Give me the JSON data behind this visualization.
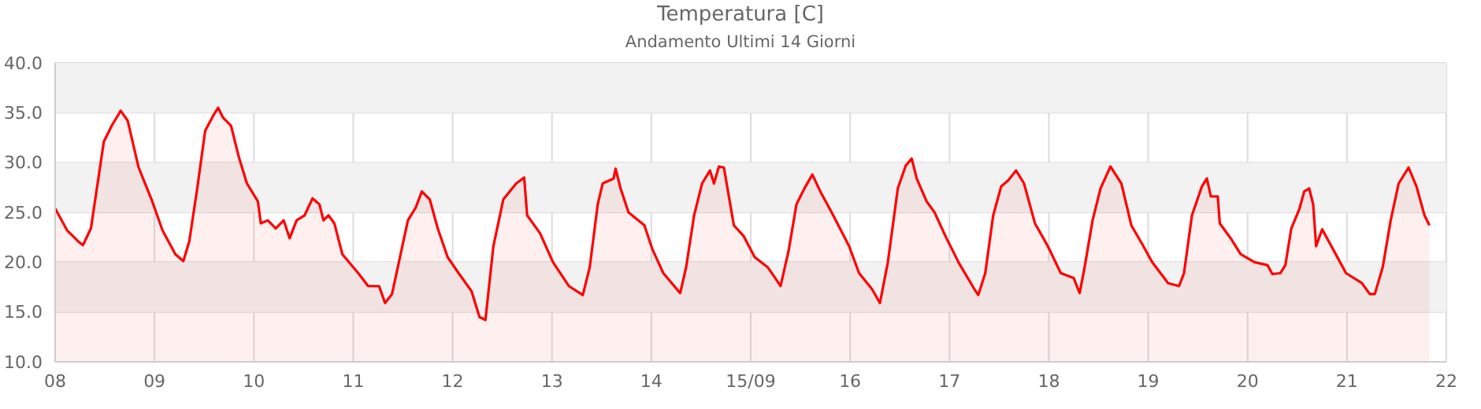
{
  "chart_data": {
    "type": "area",
    "title": "Temperatura [C]",
    "subtitle": "Andamento Ultimi 14 Giorni",
    "xlim": [
      8,
      22
    ],
    "xticks": [
      {
        "value": 8,
        "label": "08"
      },
      {
        "value": 9,
        "label": "09"
      },
      10,
      11,
      12,
      13,
      14,
      {
        "value": 15,
        "label": "15/09"
      },
      16,
      17,
      18,
      19,
      20,
      21,
      22
    ],
    "ylim": [
      10,
      40
    ],
    "yticks": [
      {
        "value": 10,
        "label": "10.0"
      },
      {
        "value": 15,
        "label": "15.0"
      },
      {
        "value": 20,
        "label": "20.0"
      },
      {
        "value": 25,
        "label": "25.0"
      },
      {
        "value": 30,
        "label": "30.0"
      },
      {
        "value": 35,
        "label": "35.0"
      },
      {
        "value": 40,
        "label": "40.0"
      }
    ],
    "grid": true,
    "legend": false,
    "marker": "none",
    "line_style": "solid",
    "bands": [
      {
        "axis": "y",
        "from": 15,
        "to": 20,
        "color": "#f2f2f2"
      },
      {
        "axis": "y",
        "from": 25,
        "to": 30,
        "color": "#f2f2f2"
      },
      {
        "axis": "y",
        "from": 35,
        "to": 40,
        "color": "#f2f2f2"
      }
    ],
    "x": [
      8.0,
      8.12,
      8.23,
      8.28,
      8.36,
      8.42,
      8.49,
      8.57,
      8.66,
      8.73,
      8.84,
      8.97,
      9.08,
      9.21,
      9.29,
      9.35,
      9.43,
      9.51,
      9.59,
      9.64,
      9.69,
      9.77,
      9.85,
      9.93,
      10.04,
      10.07,
      10.14,
      10.22,
      10.3,
      10.36,
      10.43,
      10.51,
      10.59,
      10.66,
      10.7,
      10.75,
      10.81,
      10.89,
      11.05,
      11.15,
      11.26,
      11.32,
      11.39,
      11.47,
      11.55,
      11.63,
      11.69,
      11.77,
      11.85,
      11.95,
      12.06,
      12.19,
      12.27,
      12.33,
      12.41,
      12.51,
      12.64,
      12.72,
      12.75,
      12.88,
      13.01,
      13.17,
      13.31,
      13.38,
      13.46,
      13.51,
      13.62,
      13.64,
      13.69,
      13.77,
      13.93,
      14.01,
      14.12,
      14.29,
      14.35,
      14.43,
      14.51,
      14.59,
      14.63,
      14.68,
      14.73,
      14.83,
      14.93,
      15.04,
      15.17,
      15.24,
      15.3,
      15.38,
      15.46,
      15.54,
      15.62,
      15.7,
      15.83,
      15.99,
      16.09,
      16.22,
      16.3,
      16.38,
      16.48,
      16.56,
      16.62,
      16.67,
      16.77,
      16.85,
      16.96,
      17.09,
      17.25,
      17.29,
      17.36,
      17.44,
      17.52,
      17.59,
      17.67,
      17.75,
      17.86,
      17.99,
      18.12,
      18.25,
      18.31,
      18.36,
      18.44,
      18.52,
      18.62,
      18.73,
      18.83,
      18.94,
      19.04,
      19.2,
      19.31,
      19.36,
      19.44,
      19.54,
      19.59,
      19.63,
      19.7,
      19.72,
      19.83,
      19.93,
      20.07,
      20.2,
      20.25,
      20.33,
      20.38,
      20.44,
      20.52,
      20.57,
      20.62,
      20.66,
      20.69,
      20.75,
      20.86,
      20.99,
      21.15,
      21.23,
      21.28,
      21.36,
      21.44,
      21.52,
      21.62,
      21.7,
      21.78,
      21.83
    ],
    "series": [
      {
        "color": "#ff0000",
        "values": [
          25.4,
          23.2,
          22.1,
          21.7,
          23.4,
          27.4,
          32.1,
          33.7,
          35.2,
          34.2,
          29.5,
          26.3,
          23.2,
          20.8,
          20.1,
          22.1,
          27.4,
          33.2,
          34.7,
          35.5,
          34.5,
          33.7,
          30.5,
          27.9,
          26.1,
          23.9,
          24.2,
          23.4,
          24.2,
          22.4,
          24.2,
          24.7,
          26.4,
          25.8,
          24.2,
          24.7,
          23.9,
          20.8,
          18.9,
          17.6,
          17.6,
          15.9,
          16.8,
          20.5,
          24.2,
          25.5,
          27.1,
          26.3,
          23.4,
          20.5,
          18.9,
          17.1,
          14.5,
          14.2,
          21.6,
          26.3,
          27.9,
          28.5,
          24.7,
          22.9,
          20.0,
          17.6,
          16.7,
          19.5,
          25.8,
          27.9,
          28.4,
          29.4,
          27.4,
          25.0,
          23.7,
          21.3,
          18.9,
          16.9,
          19.5,
          24.7,
          27.9,
          29.2,
          27.9,
          29.6,
          29.5,
          23.7,
          22.6,
          20.5,
          19.5,
          18.5,
          17.6,
          21.1,
          25.8,
          27.4,
          28.8,
          27.1,
          24.7,
          21.6,
          18.9,
          17.3,
          15.9,
          20.0,
          27.4,
          29.7,
          30.4,
          28.4,
          26.1,
          25.0,
          22.6,
          20.0,
          17.3,
          16.7,
          18.9,
          24.7,
          27.6,
          28.2,
          29.2,
          27.9,
          23.9,
          21.6,
          18.9,
          18.4,
          16.9,
          19.5,
          24.2,
          27.4,
          29.6,
          27.9,
          23.7,
          21.8,
          20.0,
          17.9,
          17.6,
          18.9,
          24.7,
          27.6,
          28.4,
          26.6,
          26.6,
          23.9,
          22.4,
          20.8,
          20.0,
          19.7,
          18.8,
          18.9,
          19.7,
          23.4,
          25.3,
          27.1,
          27.4,
          25.8,
          21.6,
          23.3,
          21.3,
          18.9,
          17.9,
          16.8,
          16.8,
          19.5,
          24.2,
          27.9,
          29.5,
          27.6,
          24.7,
          23.7
        ]
      }
    ]
  }
}
